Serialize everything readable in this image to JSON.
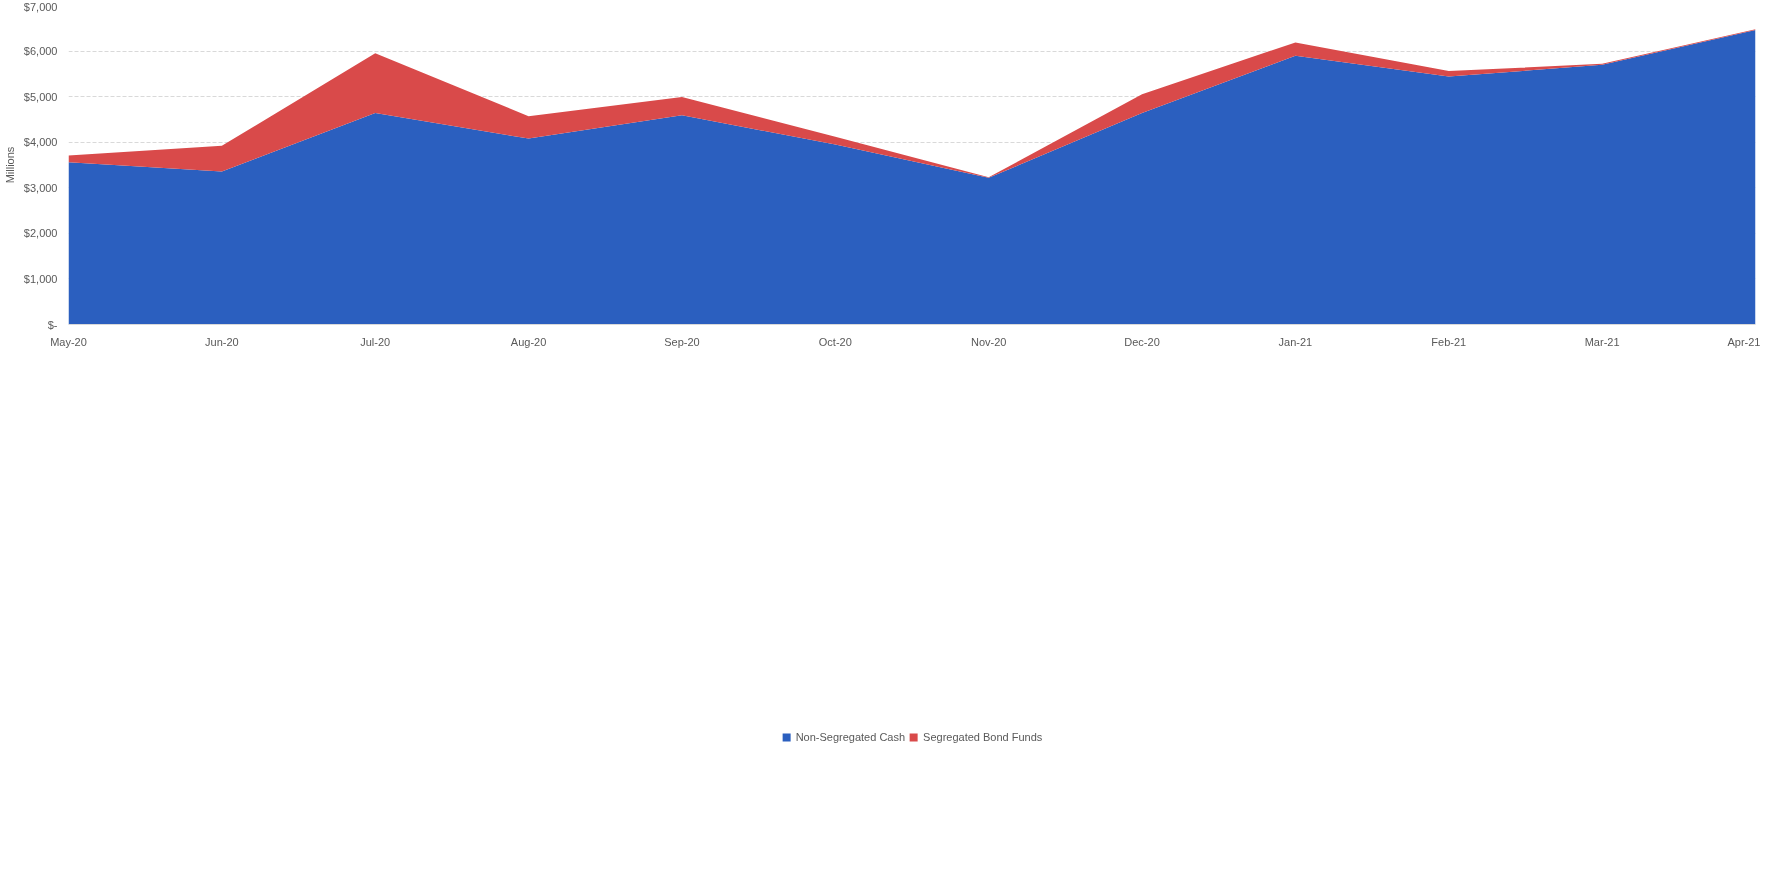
{
  "chart_data": {
    "type": "area",
    "stacked": true,
    "ylabel": "Millions",
    "categories": [
      "May-20",
      "Jun-20",
      "Jul-20",
      "Aug-20",
      "Sep-20",
      "Oct-20",
      "Nov-20",
      "Dec-20",
      "Jan-21",
      "Feb-21",
      "Mar-21",
      "Apr-21"
    ],
    "series": [
      {
        "name": "Non-Segregated Cash",
        "color": "#2b5fbf",
        "values": [
          3560,
          3360,
          4640,
          4080,
          4590,
          3950,
          3220,
          4640,
          5900,
          5440,
          5700,
          6460
        ]
      },
      {
        "name": "Segregated Bond Funds",
        "color": "#d94a4a",
        "values": [
          150,
          560,
          1310,
          490,
          400,
          170,
          10,
          410,
          290,
          120,
          20,
          20
        ]
      }
    ],
    "ylim": [
      0,
      7000
    ],
    "yticks": [
      {
        "value": 0,
        "label": "$-"
      },
      {
        "value": 1000,
        "label": "$1,000"
      },
      {
        "value": 2000,
        "label": "$2,000"
      },
      {
        "value": 3000,
        "label": "$3,000"
      },
      {
        "value": 4000,
        "label": "$4,000"
      },
      {
        "value": 5000,
        "label": "$5,000"
      },
      {
        "value": 6000,
        "label": "$6,000"
      },
      {
        "value": 7000,
        "label": "$7,000"
      }
    ],
    "grid": "y",
    "legend": "bottom"
  }
}
